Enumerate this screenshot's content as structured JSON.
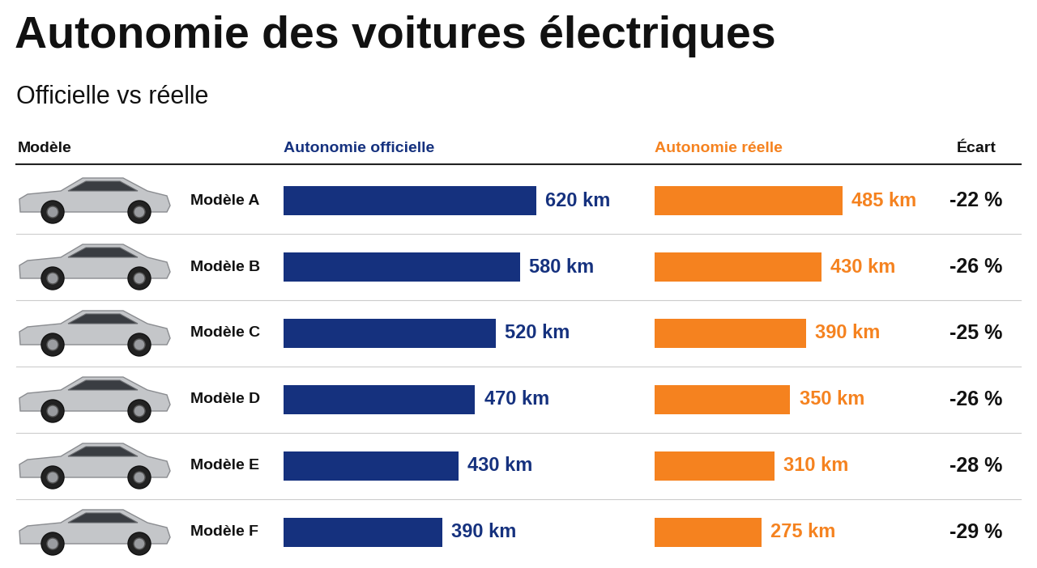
{
  "chart_data": {
    "type": "bar",
    "orientation": "horizontal",
    "title": "Autonomie des voitures électriques",
    "subtitle": "Officielle vs réelle",
    "category_header": "Modèle",
    "categories": [
      "Modèle A",
      "Modèle B",
      "Modèle C",
      "Modèle D",
      "Modèle E",
      "Modèle F"
    ],
    "series": [
      {
        "name": "Autonomie officielle",
        "color": "#15317e",
        "values": [
          620,
          580,
          520,
          470,
          430,
          390
        ],
        "value_labels": [
          "620 km",
          "580 km",
          "520 km",
          "470 km",
          "430 km",
          "390 km"
        ]
      },
      {
        "name": "Autonomie réelle",
        "color": "#f5821f",
        "values": [
          485,
          430,
          390,
          350,
          310,
          275
        ],
        "value_labels": [
          "485 km",
          "430 km",
          "390 km",
          "350 km",
          "310 km",
          "275 km"
        ]
      }
    ],
    "gap": {
      "name": "Écart",
      "values": [
        -22,
        -26,
        -25,
        -26,
        -28,
        -29
      ],
      "value_labels": [
        "-22 %",
        "-26 %",
        "-25 %",
        "-26 %",
        "-28 %",
        "-29 %"
      ]
    },
    "xlim": [
      0,
      650
    ],
    "tick_labels": false,
    "data_labels": true
  }
}
